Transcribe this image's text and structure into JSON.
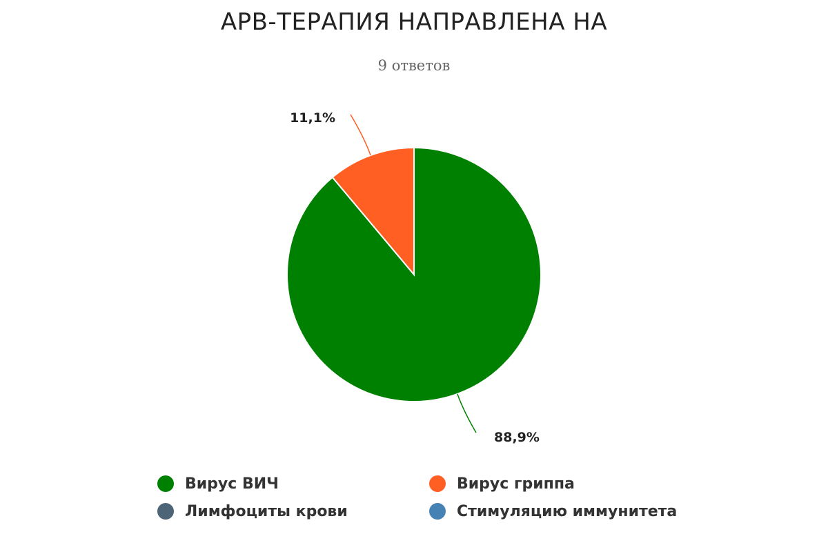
{
  "chart_data": {
    "type": "pie",
    "title": "АРВ-ТЕРАПИЯ НАПРАВЛЕНА НА",
    "subtitle": "9 ответов",
    "series": [
      {
        "name": "Вирус ВИЧ",
        "value": 88.9,
        "label": "88,9%",
        "color": "#008000"
      },
      {
        "name": "Вирус гриппа",
        "value": 11.1,
        "label": "11,1%",
        "color": "#ff5f23"
      },
      {
        "name": "Лимфоциты крови",
        "value": 0,
        "label": "",
        "color": "#4e6578"
      },
      {
        "name": "Стимуляцию иммунитета",
        "value": 0,
        "label": "",
        "color": "#4682b4"
      }
    ],
    "legend_position": "bottom",
    "start_angle": "12 o'clock",
    "direction": "clockwise"
  }
}
